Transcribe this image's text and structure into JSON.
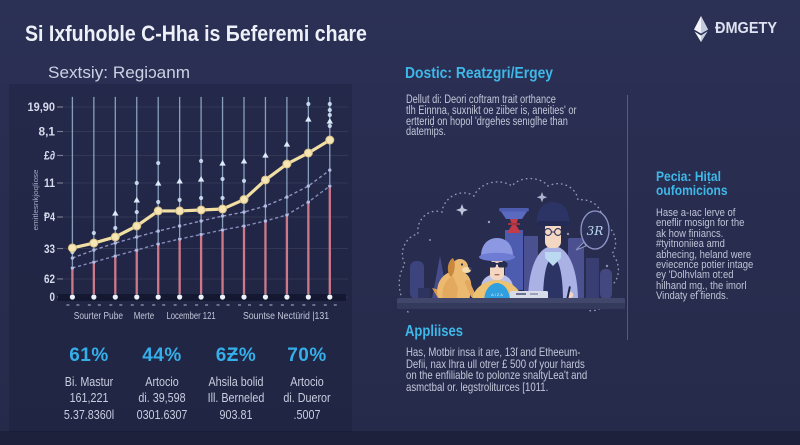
{
  "title": "Si Ixfuhoble C-Hha is Бeferemi chare",
  "logo": {
    "brand": "ƉMGETY",
    "icon": "ethereum-diamond"
  },
  "chart_data": {
    "type": "line",
    "title": "Sextsiy: Regiɔanm",
    "ylabel": "emitlesnkjoqliose",
    "n_points": 13,
    "grid": true,
    "note": "values_pct are heights above the baseline as percent of plot height (axis labels are decorative)",
    "y_tick_labels": [
      {
        "label": "19,90",
        "pos": 1.0
      },
      {
        "label": "8,1",
        "pos": 0.871
      },
      {
        "label": "£∂",
        "pos": 0.745
      },
      {
        "label": "11",
        "pos": 0.6
      },
      {
        "label": "Ᵽ4",
        "pos": 0.421
      },
      {
        "label": "33",
        "pos": 0.255
      },
      {
        "label": "62",
        "pos": 0.095
      },
      {
        "label": "0",
        "pos": 0.0
      }
    ],
    "x_tick_labels": [
      {
        "label": "Sourter Pube",
        "pos": 0.101
      },
      {
        "label": "Merte",
        "pos": 0.278
      },
      {
        "label": "Locember 121",
        "pos": 0.461
      },
      {
        "label": "Sountse Nectürid |131",
        "pos": 0.83
      }
    ],
    "series": [
      {
        "name": "highlight-line",
        "kind": "line-markers",
        "color": "#f2dfa4",
        "values_pct": [
          25.8,
          28.4,
          31.6,
          37.4,
          45.3,
          45.3,
          45.8,
          46.3,
          51.3,
          61.6,
          70.0,
          75.8,
          82.6
        ]
      },
      {
        "name": "upper-dashed",
        "kind": "dashed-line",
        "color": "#99a1ce",
        "values_pct": [
          20.5,
          24.7,
          28.4,
          31.6,
          34.7,
          37.4,
          40.0,
          42.6,
          44.7,
          47.9,
          52.6,
          58.4,
          66.8
        ]
      },
      {
        "name": "lower-dashed",
        "kind": "dashed-line",
        "color": "#8f97c6",
        "values_pct": [
          15.3,
          18.4,
          21.6,
          24.7,
          27.9,
          30.5,
          32.9,
          35.3,
          37.4,
          40.0,
          43.2,
          50.0,
          58.4
        ]
      },
      {
        "name": "pink-bars",
        "kind": "bar",
        "color": "#e08292",
        "values_pct": [
          15.3,
          18.4,
          21.6,
          24.7,
          27.9,
          30.5,
          32.9,
          35.3,
          37.4,
          40.0,
          43.2,
          50.0,
          58.4
        ]
      },
      {
        "name": "range-lines",
        "kind": "vline",
        "color": "#aecdea",
        "top_pct": 105.3,
        "triangles_pct": [
          null,
          null,
          44.2,
          51.1,
          60.0,
          61.1,
          62.1,
          70.5,
          71.6,
          74.7,
          80.5,
          93.7,
          92.6
        ],
        "dots_pct": [
          [
            23.7
          ],
          [
            33.7
          ],
          [
            36.3
          ],
          [
            44.7,
            60.0
          ],
          [
            50.0,
            70.5
          ],
          [
            51.1
          ],
          [
            52.1,
            71.6
          ],
          [
            52.1,
            62.1
          ],
          [
            61.1
          ],
          [
            62.1
          ],
          [
            70.5
          ],
          [
            75.3,
            101.6
          ],
          [
            101.6,
            98.4,
            95.8,
            90.0
          ]
        ]
      }
    ]
  },
  "stats": [
    {
      "percent": "61%",
      "lines": "Bi. Mastur\n161,221\n5.37.8360l"
    },
    {
      "percent": "44%",
      "lines": "Artocio\ndi. 39,598\n0301.6307"
    },
    {
      "percent": "6Ƶ%",
      "lines": "Ahsila bolid\nIll. Berneled\n903.81"
    },
    {
      "percent": "70%",
      "lines": "Artocio\ndi. Dueror\n.5007"
    }
  ],
  "middle": {
    "heading": "Dostic: Reatzgri/Ergey",
    "body": "Dellut di: Deori coftram trait orthance\ntlh Einnna, suxnikt oe ziiber is, aneities' or\nertterid on hopol 'drgehes senıglhe than\ndatemips.",
    "bubble_text": "3R",
    "shirt_text": "A I Z A",
    "applies_heading": "Appliises",
    "applies_body": "Has, Motbir insa it are, 13ſ and Etheeum-\nDefii, nax lhra ull otrer £ 500 of your hards\non the enfiliable to polonze snaltyLea't and\nasmctbal or. legstroliturces [1011."
  },
  "right": {
    "heading": "Pecia: Hiṭal\noufomicions",
    "body": "Hase a-ıac lerve of\neneflir mosign for the\nak how finiancs.\n#tyitnoniiea amd\nabhecing, heland were\neviecence potier intage\ney 'Dolhvlam ot:ed\nhilhand mg., the imorl\nVindaty ef fiends."
  },
  "colors": {
    "background": "#282c4e",
    "accent_cyan": "#3eb8e8",
    "stat_cyan": "#36aee9",
    "line_yellow": "#f2dfa4",
    "bar_pink": "#e08292",
    "vline_blue": "#aecdea",
    "dashed_lavender": "#99a1ce",
    "body_text": "#c3c8da"
  }
}
